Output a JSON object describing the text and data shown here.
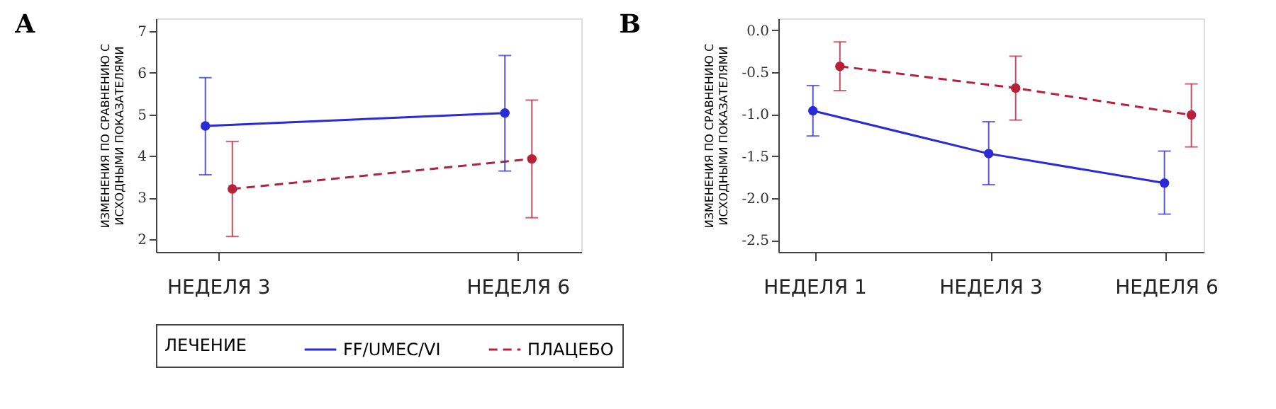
{
  "chart_data": [
    {
      "type": "line",
      "title": "A",
      "ylabel": "ИЗМЕНЕНИЯ ПО СРАВНЕНИЮ С ИСХОДНЫМИ ПОКАЗАТЕЛЯМИ",
      "categories": [
        "НЕДЕЛЯ 3",
        "НЕДЕЛЯ 6"
      ],
      "ylim": [
        1.7,
        7.3
      ],
      "yticks": [
        2,
        3,
        4,
        5,
        6,
        7
      ],
      "grid": false,
      "marker": "circle",
      "legend": "bottom",
      "legend_title": "ЛЕЧЕНИЕ",
      "series": [
        {
          "name": "FF/UMEC/VI",
          "color": "#2a2ad8",
          "line_style": "solid",
          "values": [
            4.72,
            5.03
          ],
          "errors": [
            [
              3.55,
              5.88
            ],
            [
              3.64,
              6.41
            ]
          ]
        },
        {
          "name": "ПЛАЦЕБО",
          "color": "#b8203a",
          "line_style": "dashed",
          "values": [
            3.21,
            3.93
          ],
          "errors": [
            [
              2.07,
              4.35
            ],
            [
              2.52,
              5.34
            ]
          ]
        }
      ]
    },
    {
      "type": "line",
      "title": "B",
      "ylabel": "ИЗМЕНЕНИЯ ПО СРАВНЕНИЮ С ИСХОДНЫМИ ПОКАЗАТЕЛЯМИ",
      "categories": [
        "НЕДЕЛЯ 1",
        "НЕДЕЛЯ 3",
        "НЕДЕЛЯ 6"
      ],
      "ylim": [
        -2.64,
        0.14
      ],
      "yticks": [
        {
          "value": 0,
          "label": "0.0"
        },
        -0.5,
        {
          "value": -1,
          "label": "-1.0"
        },
        -1.5,
        {
          "value": -2,
          "label": "-2.0"
        },
        -2.5
      ],
      "grid": false,
      "marker": "circle",
      "series": [
        {
          "name": "FF/UMEC/VI",
          "color": "#2a2ad8",
          "line_style": "solid",
          "values": [
            -0.96,
            -1.47,
            -1.82
          ],
          "errors": [
            [
              -1.26,
              -0.66
            ],
            [
              -1.84,
              -1.09
            ],
            [
              -2.19,
              -1.44
            ]
          ]
        },
        {
          "name": "ПЛАЦЕБО",
          "color": "#b8203a",
          "line_style": "dashed",
          "values": [
            -0.43,
            -0.69,
            -1.01
          ],
          "errors": [
            [
              -0.72,
              -0.14
            ],
            [
              -1.07,
              -0.31
            ],
            [
              -1.39,
              -0.64
            ]
          ]
        }
      ]
    }
  ]
}
